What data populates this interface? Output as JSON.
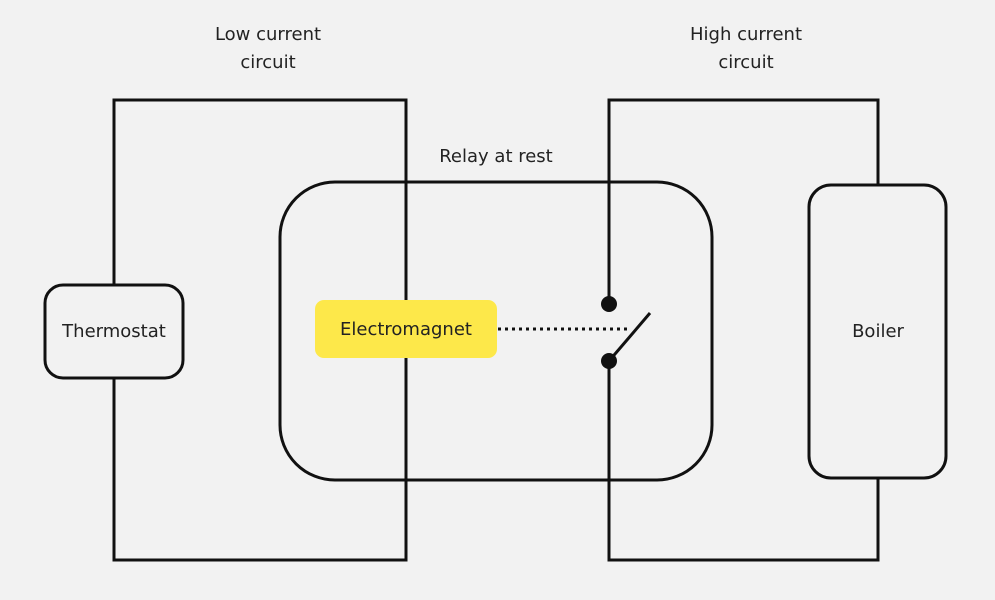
{
  "labels": {
    "low": "Low current\ncircuit",
    "high": "High current\ncircuit",
    "relay": "Relay at rest"
  },
  "nodes": [
    {
      "label": "Thermostat"
    },
    {
      "label": "Electromagnet"
    },
    {
      "label": "Boiler"
    }
  ]
}
